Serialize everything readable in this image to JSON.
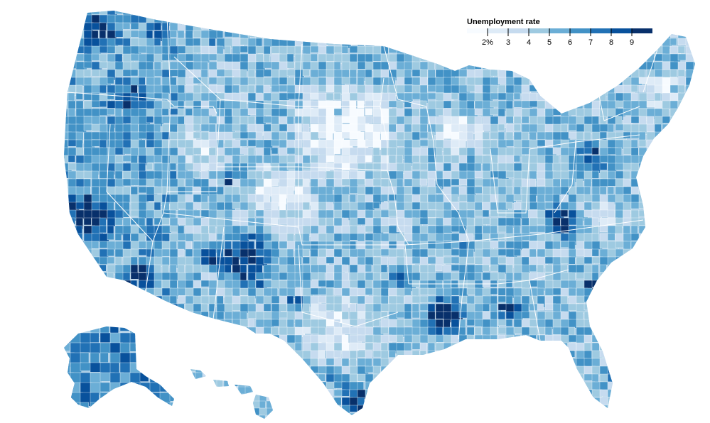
{
  "legend": {
    "title": "Unemployment rate",
    "ticks": [
      "2%",
      "3",
      "4",
      "5",
      "6",
      "7",
      "8",
      "9"
    ]
  },
  "colors": {
    "scale": [
      "#f7fbff",
      "#deebf7",
      "#c6dbef",
      "#9ecae1",
      "#6baed6",
      "#4292c6",
      "#2171b5",
      "#08519c",
      "#08306b"
    ],
    "state_border": "#ffffff"
  },
  "regions": [
    "contiguous-united-states",
    "alaska",
    "hawaii"
  ]
}
